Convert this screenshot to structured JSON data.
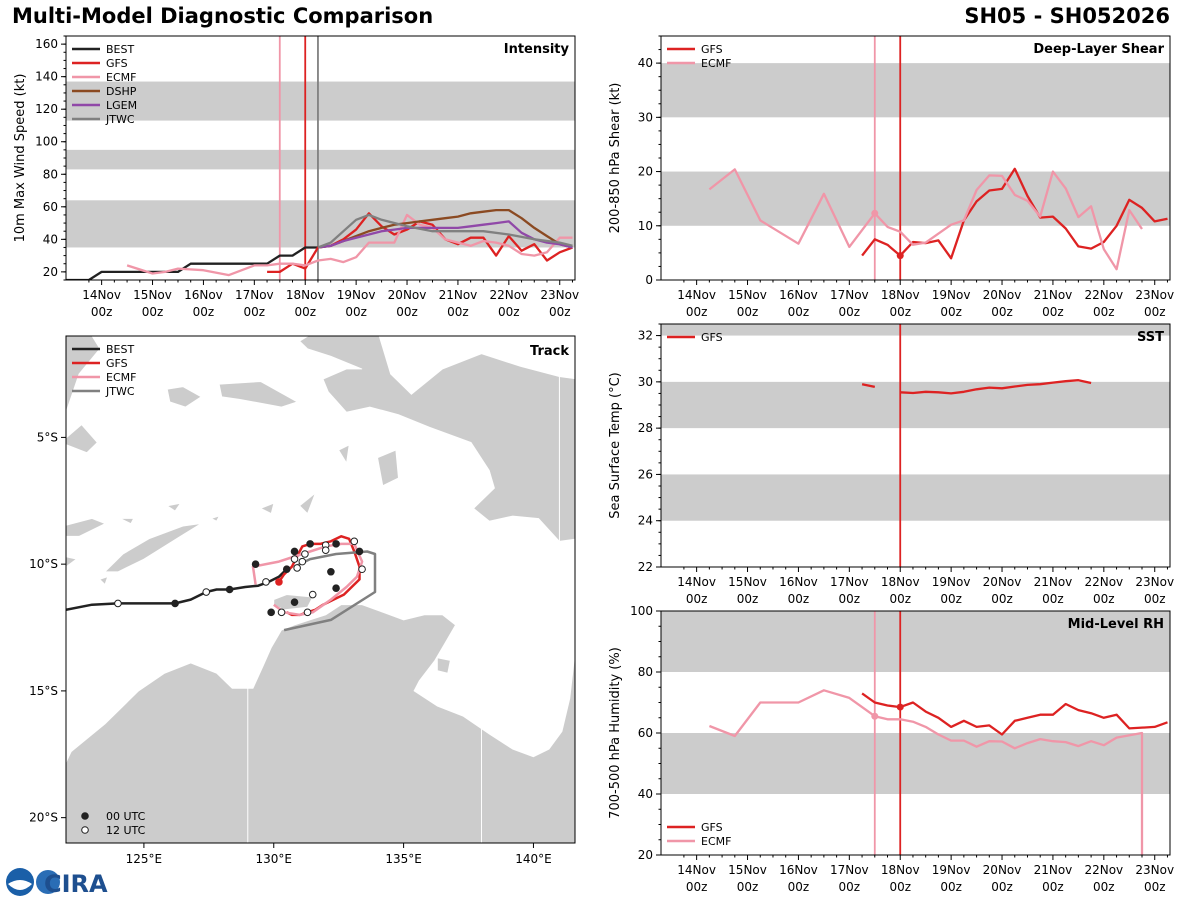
{
  "header": {
    "title": "Multi-Model Diagnostic Comparison",
    "storm_id": "SH05 - SH052026"
  },
  "colors": {
    "BEST": "#222222",
    "GFS": "#dd2222",
    "ECMF": "#f096a8",
    "DSHP": "#8b4a22",
    "LGEM": "#9048a8",
    "JTWC": "#808080",
    "band": "#cccccc",
    "land": "#cccccc"
  },
  "time_ticks": [
    {
      "day": "14Nov",
      "hour": "00z"
    },
    {
      "day": "15Nov",
      "hour": "00z"
    },
    {
      "day": "16Nov",
      "hour": "00z"
    },
    {
      "day": "17Nov",
      "hour": "00z"
    },
    {
      "day": "18Nov",
      "hour": "00z"
    },
    {
      "day": "19Nov",
      "hour": "00z"
    },
    {
      "day": "20Nov",
      "hour": "00z"
    },
    {
      "day": "21Nov",
      "hour": "00z"
    },
    {
      "day": "22Nov",
      "hour": "00z"
    },
    {
      "day": "23Nov",
      "hour": "00z"
    }
  ],
  "chart_data": [
    {
      "id": "intensity",
      "type": "line",
      "title": "Intensity",
      "ylabel": "10m Max Wind Speed (kt)",
      "xlim": [
        -4.7,
        5.3
      ],
      "ylim": [
        15,
        165
      ],
      "yticks": [
        20,
        40,
        60,
        80,
        100,
        120,
        140,
        160
      ],
      "bands": [
        [
          35,
          64
        ],
        [
          83,
          95
        ],
        [
          113,
          137
        ]
      ],
      "vlines": [
        {
          "x": -0.5,
          "model": "ECMF"
        },
        {
          "x": 0,
          "model": "GFS"
        },
        {
          "x": 0.25,
          "model": "JTWC"
        }
      ],
      "series": [
        {
          "name": "BEST",
          "x": [
            -4.7,
            -4.25,
            -4,
            -3.5,
            -3,
            -2.5,
            -2.25,
            -2,
            -1.5,
            -1,
            -0.75,
            -0.5,
            -0.25,
            0,
            0.25
          ],
          "y": [
            15,
            15,
            20,
            20,
            20,
            20,
            25,
            25,
            25,
            25,
            25,
            30,
            30,
            35,
            35
          ]
        },
        {
          "name": "GFS",
          "x": [
            -0.75,
            -0.5,
            -0.25,
            0,
            0.25,
            0.5,
            0.75,
            1,
            1.25,
            1.5,
            1.75,
            2,
            2.25,
            2.5,
            2.75,
            3,
            3.25,
            3.5,
            3.75,
            4,
            4.25,
            4.5,
            4.75,
            5,
            5.25
          ],
          "y": [
            20,
            20,
            25,
            22,
            35,
            36,
            40,
            46,
            56,
            48,
            43,
            46,
            51,
            49,
            40,
            37,
            41,
            41,
            30,
            42,
            33,
            37,
            27,
            32,
            35
          ]
        },
        {
          "name": "ECMF",
          "x": [
            -3.5,
            -3,
            -2.75,
            -2.5,
            -2,
            -1.5,
            -1,
            -0.75,
            -0.5,
            -0.25,
            0,
            0.25,
            0.5,
            0.75,
            1,
            1.25,
            1.5,
            1.75,
            2,
            2.25,
            2.5,
            2.75,
            3,
            3.25,
            3.5,
            3.75,
            4,
            4.25,
            4.5,
            4.75,
            5,
            5.25
          ],
          "y": [
            24,
            19,
            20,
            22,
            21,
            18,
            24,
            24,
            25,
            25,
            24,
            27,
            28,
            26,
            29,
            38,
            38,
            38,
            55,
            49,
            47,
            40,
            38,
            36,
            39,
            38,
            36,
            31,
            30,
            32,
            41,
            41
          ]
        },
        {
          "name": "DSHP",
          "x": [
            0.25,
            0.5,
            0.75,
            1,
            1.25,
            1.5,
            1.75,
            2,
            2.25,
            2.5,
            2.75,
            3,
            3.25,
            3.5,
            3.75,
            4,
            4.25,
            4.5,
            4.75,
            5,
            5.25
          ],
          "y": [
            35,
            36,
            39,
            42,
            45,
            47,
            49,
            50,
            51,
            52,
            53,
            54,
            56,
            57,
            58,
            58,
            53,
            47,
            42,
            37,
            35
          ]
        },
        {
          "name": "LGEM",
          "x": [
            0.25,
            0.5,
            0.75,
            1,
            1.25,
            1.5,
            1.75,
            2,
            2.25,
            2.5,
            2.75,
            3,
            3.25,
            3.5,
            3.75,
            4,
            4.25,
            4.5,
            4.75,
            5,
            5.25
          ],
          "y": [
            35,
            36,
            39,
            41,
            43,
            45,
            46,
            47,
            47,
            47,
            47,
            47,
            48,
            49,
            50,
            51,
            44,
            40,
            38,
            37,
            35
          ]
        },
        {
          "name": "JTWC",
          "x": [
            0.25,
            0.5,
            0.75,
            1,
            1.25,
            1.5,
            2,
            2.5,
            3,
            3.5,
            4,
            4.5,
            5,
            5.25
          ],
          "y": [
            35,
            38,
            45,
            52,
            55,
            52,
            48,
            45,
            45,
            45,
            43,
            40,
            38,
            36
          ]
        }
      ],
      "legend": [
        "BEST",
        "GFS",
        "ECMF",
        "DSHP",
        "LGEM",
        "JTWC"
      ]
    },
    {
      "id": "shear",
      "type": "line",
      "title": "Deep-Layer Shear",
      "ylabel": "200-850 hPa Shear (kt)",
      "xlim": [
        -4.7,
        5.3
      ],
      "ylim": [
        0,
        45
      ],
      "yticks": [
        0,
        10,
        20,
        30,
        40
      ],
      "bands": [
        [
          10,
          20
        ],
        [
          30,
          40
        ]
      ],
      "vlines": [
        {
          "x": -0.5,
          "model": "ECMF"
        },
        {
          "x": 0,
          "model": "GFS"
        }
      ],
      "markers": [
        {
          "x": -0.5,
          "y": 12.3,
          "model": "ECMF"
        },
        {
          "x": 0,
          "y": 4.5,
          "model": "GFS"
        }
      ],
      "series": [
        {
          "name": "GFS",
          "x": [
            -0.75,
            -0.5,
            -0.25,
            0,
            0.25,
            0.5,
            0.75,
            1,
            1.25,
            1.5,
            1.75,
            2,
            2.25,
            2.5,
            2.75,
            3,
            3.25,
            3.5,
            3.75,
            4,
            4.25,
            4.5,
            4.75,
            5,
            5.25
          ],
          "y": [
            4.5,
            7.5,
            6.5,
            4.5,
            7,
            6.8,
            7.3,
            4,
            11,
            14.5,
            16.5,
            16.8,
            20.5,
            15.5,
            11.5,
            11.7,
            9.5,
            6.2,
            5.8,
            7,
            10,
            14.8,
            13.3,
            10.8,
            11.3
          ]
        },
        {
          "name": "ECMF",
          "x": [
            -3.75,
            -3.25,
            -2.75,
            -2,
            -1.5,
            -1,
            -0.5,
            -0.25,
            0,
            0.25,
            0.5,
            1,
            1.25,
            1.5,
            1.75,
            2,
            2.25,
            2.5,
            2.75,
            3,
            3.25,
            3.5,
            3.75,
            4,
            4.25,
            4.5,
            4.75
          ],
          "y": [
            16.7,
            20.4,
            11,
            6.7,
            15.9,
            6.1,
            12.3,
            9.8,
            8.9,
            6.5,
            6.9,
            10.2,
            11,
            16.6,
            19.3,
            19.2,
            15.7,
            14.6,
            11.7,
            20,
            16.9,
            11.6,
            13.6,
            5.7,
            2,
            12.9,
            9.4
          ]
        }
      ],
      "legend": [
        "GFS",
        "ECMF"
      ]
    },
    {
      "id": "sst",
      "type": "line",
      "title": "SST",
      "ylabel": "Sea Surface Temp (°C)",
      "xlim": [
        -4.7,
        5.3
      ],
      "ylim": [
        22,
        32.5
      ],
      "yticks": [
        22,
        24,
        26,
        28,
        30,
        32
      ],
      "bands": [
        [
          24,
          26
        ],
        [
          28,
          30
        ],
        [
          32,
          34
        ]
      ],
      "vlines": [
        {
          "x": 0,
          "model": "GFS"
        }
      ],
      "markers": [],
      "series": [
        {
          "name": "GFS",
          "segments": [
            {
              "x": [
                -0.75,
                -0.5
              ],
              "y": [
                29.9,
                29.78
              ]
            },
            {
              "x": [
                0,
                0.25,
                0.5,
                0.75,
                1,
                1.25,
                1.5,
                1.75,
                2,
                2.25,
                2.5,
                2.75,
                3,
                3.25,
                3.5,
                3.75
              ],
              "y": [
                29.55,
                29.52,
                29.57,
                29.55,
                29.5,
                29.57,
                29.68,
                29.75,
                29.72,
                29.8,
                29.87,
                29.9,
                29.97,
                30.03,
                30.07,
                29.95
              ]
            }
          ]
        }
      ],
      "legend": [
        "GFS"
      ]
    },
    {
      "id": "rh",
      "type": "line",
      "title": "Mid-Level RH",
      "ylabel": "700-500 hPa Humidity (%)",
      "xlim": [
        -4.7,
        5.3
      ],
      "ylim": [
        20,
        100
      ],
      "yticks": [
        20,
        40,
        60,
        80,
        100
      ],
      "bands": [
        [
          40,
          60
        ],
        [
          80,
          100
        ]
      ],
      "vlines": [
        {
          "x": -0.5,
          "model": "ECMF"
        },
        {
          "x": 0,
          "model": "GFS"
        }
      ],
      "markers": [
        {
          "x": -0.5,
          "y": 65.5,
          "model": "ECMF"
        },
        {
          "x": 0,
          "y": 68.5,
          "model": "GFS"
        }
      ],
      "series": [
        {
          "name": "GFS",
          "x": [
            -0.75,
            -0.5,
            -0.25,
            0,
            0.25,
            0.5,
            0.75,
            1,
            1.25,
            1.5,
            1.75,
            2,
            2.25,
            2.5,
            2.75,
            3,
            3.25,
            3.5,
            3.75,
            4,
            4.25,
            4.5,
            5,
            5.25
          ],
          "y": [
            73,
            70,
            69,
            68.5,
            70,
            67,
            65,
            62,
            64,
            62,
            62.5,
            59.5,
            64,
            65,
            66,
            66,
            69.5,
            67.5,
            66.5,
            65,
            66,
            61.5,
            62,
            63.5
          ]
        },
        {
          "name": "ECMF",
          "x": [
            -3.75,
            -3.25,
            -2.75,
            -2,
            -1.5,
            -1,
            -0.5,
            -0.25,
            0,
            0.25,
            0.5,
            0.75,
            1,
            1.25,
            1.5,
            1.75,
            2,
            2.25,
            2.5,
            2.75,
            3,
            3.25,
            3.5,
            3.75,
            4,
            4.25,
            4.75,
            4.75
          ],
          "y": [
            62.3,
            59,
            70,
            70,
            74,
            71.5,
            65.5,
            64.5,
            64.5,
            63.7,
            62,
            59.5,
            57.5,
            57.5,
            55.5,
            57.3,
            57.2,
            55,
            56.7,
            58,
            57.3,
            57,
            55.7,
            57.3,
            56,
            58.5,
            60,
            20
          ]
        }
      ],
      "legend": [
        "GFS",
        "ECMF"
      ]
    }
  ],
  "track": {
    "title": "Track",
    "lon_range": [
      122,
      141.6
    ],
    "lat_range": [
      -21,
      -1
    ],
    "lon_ticks": [
      {
        "v": 125,
        "label": "125°E"
      },
      {
        "v": 130,
        "label": "130°E"
      },
      {
        "v": 135,
        "label": "135°E"
      },
      {
        "v": 140,
        "label": "140°E"
      }
    ],
    "lat_ticks": [
      {
        "v": -5,
        "label": "5°S"
      },
      {
        "v": -10,
        "label": "10°S"
      },
      {
        "v": -15,
        "label": "15°S"
      },
      {
        "v": -20,
        "label": "20°S"
      }
    ],
    "legend": [
      "BEST",
      "GFS",
      "ECMF",
      "JTWC"
    ],
    "time_legend": [
      "00 UTC",
      "12 UTC"
    ],
    "tracks": [
      {
        "name": "BEST",
        "lon": [
          122,
          123,
          124,
          125,
          126.2,
          126.8,
          127.4,
          127.8,
          128.3,
          128.9,
          129.4,
          129.8,
          130.2,
          130.5
        ],
        "lat": [
          -11.8,
          -11.6,
          -11.55,
          -11.55,
          -11.55,
          -11.4,
          -11.1,
          -11.0,
          -11.0,
          -10.9,
          -10.85,
          -10.7,
          -10.5,
          -10.2
        ]
      },
      {
        "name": "GFS",
        "lon": [
          130.2,
          130.4,
          130.7,
          130.9,
          131.1,
          131.4,
          131.8,
          132.2,
          132.6,
          132.9,
          133.1,
          133.3,
          133.3,
          133.0,
          132.7,
          132.3,
          131.9,
          131.6,
          131.3,
          131.0,
          130.7,
          130.5
        ],
        "lat": [
          -10.7,
          -10.4,
          -10.1,
          -9.7,
          -9.3,
          -9.2,
          -9.2,
          -9.1,
          -8.9,
          -9.0,
          -9.5,
          -10.1,
          -10.6,
          -10.9,
          -11.2,
          -11.4,
          -11.6,
          -11.8,
          -11.9,
          -12.0,
          -12.0,
          -11.9
        ]
      },
      {
        "name": "ECMF",
        "lon": [
          129.3,
          129.2,
          129.7,
          130.2,
          130.8,
          131.4,
          132.0,
          132.6,
          133.1,
          133.4,
          133.2,
          132.8,
          132.2,
          131.5,
          131.0,
          130.4,
          130.0
        ],
        "lat": [
          -10.8,
          -10.1,
          -10.0,
          -9.9,
          -9.7,
          -9.5,
          -9.3,
          -9.2,
          -9.2,
          -9.9,
          -10.5,
          -10.9,
          -11.4,
          -11.9,
          -12.0,
          -11.9,
          -11.6
        ]
      },
      {
        "name": "JTWC",
        "lon": [
          130.4,
          132.2,
          133.9,
          133.9,
          133.6,
          132.4,
          131.4,
          130.8
        ],
        "lat": [
          -12.6,
          -12.2,
          -11.1,
          -9.6,
          -9.5,
          -9.6,
          -9.8,
          -10.1
        ]
      }
    ],
    "points": [
      {
        "lon": 124.0,
        "lat": -11.55,
        "utc": "12"
      },
      {
        "lon": 126.2,
        "lat": -11.55,
        "utc": "00"
      },
      {
        "lon": 127.4,
        "lat": -11.1,
        "utc": "12"
      },
      {
        "lon": 128.3,
        "lat": -11.0,
        "utc": "00"
      },
      {
        "lon": 129.7,
        "lat": -10.7,
        "utc": "12"
      },
      {
        "lon": 130.5,
        "lat": -10.2,
        "utc": "00"
      },
      {
        "lon": 129.3,
        "lat": -10.0,
        "utc": "00"
      },
      {
        "lon": 130.8,
        "lat": -9.5,
        "utc": "00"
      },
      {
        "lon": 131.4,
        "lat": -9.2,
        "utc": "00"
      },
      {
        "lon": 132.0,
        "lat": -9.25,
        "utc": "12"
      },
      {
        "lon": 132.4,
        "lat": -9.2,
        "utc": "00"
      },
      {
        "lon": 133.1,
        "lat": -9.1,
        "utc": "12"
      },
      {
        "lon": 133.3,
        "lat": -9.5,
        "utc": "00"
      },
      {
        "lon": 133.4,
        "lat": -10.2,
        "utc": "12"
      },
      {
        "lon": 132.2,
        "lat": -10.3,
        "utc": "00"
      },
      {
        "lon": 132.4,
        "lat": -10.95,
        "utc": "00"
      },
      {
        "lon": 131.5,
        "lat": -11.2,
        "utc": "12"
      },
      {
        "lon": 130.8,
        "lat": -11.5,
        "utc": "00"
      },
      {
        "lon": 131.3,
        "lat": -11.9,
        "utc": "12"
      },
      {
        "lon": 130.3,
        "lat": -11.9,
        "utc": "12"
      },
      {
        "lon": 129.9,
        "lat": -11.9,
        "utc": "00"
      },
      {
        "lon": 130.8,
        "lat": -9.8,
        "utc": "12"
      },
      {
        "lon": 131.1,
        "lat": -9.9,
        "utc": "12"
      },
      {
        "lon": 131.2,
        "lat": -9.6,
        "utc": "12"
      },
      {
        "lon": 132.0,
        "lat": -9.45,
        "utc": "12"
      },
      {
        "lon": 130.9,
        "lat": -10.15,
        "utc": "12"
      }
    ],
    "current": {
      "lon": 130.2,
      "lat": -10.7
    }
  },
  "logo": {
    "text": "CIRA"
  }
}
